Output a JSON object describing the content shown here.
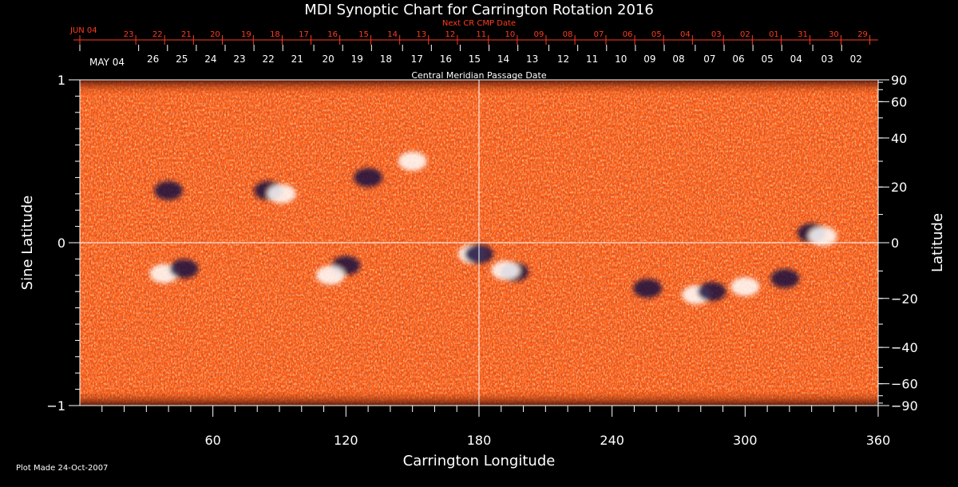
{
  "colors": {
    "background": "#000000",
    "foreground": "#ffffff",
    "next_cr_accent": "#ff3b1f",
    "field_base": "#ff5a10",
    "positive_polarity": "#ffffff",
    "negative_polarity": "#1a1040"
  },
  "chart_data": {
    "type": "heatmap",
    "title": "MDI Synoptic Chart for Carrington Rotation 2016",
    "xlabel": "Carrington Longitude",
    "ylabel": "Sine Latitude",
    "y2label": "Latitude",
    "xlim": [
      0,
      360
    ],
    "ylim": [
      -1,
      1
    ],
    "x_ticks": [
      60,
      120,
      180,
      240,
      300,
      360
    ],
    "y_ticks": [
      {
        "value": 1,
        "label": "1"
      },
      {
        "value": 0,
        "label": "0"
      },
      {
        "value": -1,
        "label": "−1"
      }
    ],
    "lat_ticks": [
      {
        "deg": 90,
        "label": "90"
      },
      {
        "deg": 60,
        "label": "60"
      },
      {
        "deg": 40,
        "label": "40"
      },
      {
        "deg": 20,
        "label": "20"
      },
      {
        "deg": 0,
        "label": "0"
      },
      {
        "deg": -20,
        "label": "−20"
      },
      {
        "deg": -40,
        "label": "−40"
      },
      {
        "deg": -60,
        "label": "−60"
      },
      {
        "deg": -90,
        "label": "−90"
      }
    ],
    "cmp_axis_label": "Central Meridian Passage Date",
    "cmp_first_label": "MAY 04",
    "cmp_dates": [
      {
        "lon": 33,
        "label": "26"
      },
      {
        "lon": 46,
        "label": "25"
      },
      {
        "lon": 59,
        "label": "24"
      },
      {
        "lon": 72,
        "label": "23"
      },
      {
        "lon": 85,
        "label": "22"
      },
      {
        "lon": 98,
        "label": "21"
      },
      {
        "lon": 112,
        "label": "20"
      },
      {
        "lon": 125,
        "label": "19"
      },
      {
        "lon": 138,
        "label": "18"
      },
      {
        "lon": 152,
        "label": "17"
      },
      {
        "lon": 165,
        "label": "16"
      },
      {
        "lon": 178,
        "label": "15"
      },
      {
        "lon": 191,
        "label": "14"
      },
      {
        "lon": 204,
        "label": "13"
      },
      {
        "lon": 218,
        "label": "12"
      },
      {
        "lon": 231,
        "label": "11"
      },
      {
        "lon": 244,
        "label": "10"
      },
      {
        "lon": 257,
        "label": "09"
      },
      {
        "lon": 270,
        "label": "08"
      },
      {
        "lon": 284,
        "label": "07"
      },
      {
        "lon": 297,
        "label": "06"
      },
      {
        "lon": 310,
        "label": "05"
      },
      {
        "lon": 323,
        "label": "04"
      },
      {
        "lon": 337,
        "label": "03"
      },
      {
        "lon": 350,
        "label": "02"
      }
    ],
    "next_cr_label": "Next CR CMP Date",
    "next_cr_first_label": "JUN 04",
    "next_cr_dates": [
      {
        "lon": 22,
        "label": "23"
      },
      {
        "lon": 35,
        "label": "22"
      },
      {
        "lon": 48,
        "label": "21"
      },
      {
        "lon": 61,
        "label": "20"
      },
      {
        "lon": 75,
        "label": "19"
      },
      {
        "lon": 88,
        "label": "18"
      },
      {
        "lon": 101,
        "label": "17"
      },
      {
        "lon": 114,
        "label": "16"
      },
      {
        "lon": 128,
        "label": "15"
      },
      {
        "lon": 141,
        "label": "14"
      },
      {
        "lon": 154,
        "label": "13"
      },
      {
        "lon": 167,
        "label": "12"
      },
      {
        "lon": 181,
        "label": "11"
      },
      {
        "lon": 194,
        "label": "10"
      },
      {
        "lon": 207,
        "label": "09"
      },
      {
        "lon": 220,
        "label": "08"
      },
      {
        "lon": 234,
        "label": "07"
      },
      {
        "lon": 247,
        "label": "06"
      },
      {
        "lon": 260,
        "label": "05"
      },
      {
        "lon": 273,
        "label": "04"
      },
      {
        "lon": 287,
        "label": "03"
      },
      {
        "lon": 300,
        "label": "02"
      },
      {
        "lon": 313,
        "label": "01"
      },
      {
        "lon": 326,
        "label": "31"
      },
      {
        "lon": 340,
        "label": "30"
      },
      {
        "lon": 353,
        "label": "29"
      }
    ],
    "active_regions": [
      {
        "lon": 38,
        "sinlat": -0.19,
        "polarity": "positive"
      },
      {
        "lon": 47,
        "sinlat": -0.16,
        "polarity": "negative"
      },
      {
        "lon": 85,
        "sinlat": 0.32,
        "polarity": "negative"
      },
      {
        "lon": 91,
        "sinlat": 0.3,
        "polarity": "positive"
      },
      {
        "lon": 40,
        "sinlat": 0.32,
        "polarity": "negative"
      },
      {
        "lon": 130,
        "sinlat": 0.4,
        "polarity": "negative"
      },
      {
        "lon": 177,
        "sinlat": -0.07,
        "polarity": "positive"
      },
      {
        "lon": 180,
        "sinlat": -0.07,
        "polarity": "negative"
      },
      {
        "lon": 196,
        "sinlat": -0.18,
        "polarity": "negative"
      },
      {
        "lon": 192,
        "sinlat": -0.17,
        "polarity": "positive"
      },
      {
        "lon": 120,
        "sinlat": -0.14,
        "polarity": "negative"
      },
      {
        "lon": 113,
        "sinlat": -0.2,
        "polarity": "positive"
      },
      {
        "lon": 278,
        "sinlat": -0.32,
        "polarity": "positive"
      },
      {
        "lon": 256,
        "sinlat": -0.28,
        "polarity": "negative"
      },
      {
        "lon": 318,
        "sinlat": -0.22,
        "polarity": "negative"
      },
      {
        "lon": 330,
        "sinlat": 0.06,
        "polarity": "negative"
      },
      {
        "lon": 335,
        "sinlat": 0.04,
        "polarity": "positive"
      },
      {
        "lon": 150,
        "sinlat": 0.5,
        "polarity": "positive"
      },
      {
        "lon": 285,
        "sinlat": -0.3,
        "polarity": "negative"
      },
      {
        "lon": 300,
        "sinlat": -0.27,
        "polarity": "positive"
      }
    ],
    "grid": false,
    "crosshair": {
      "lon": 180,
      "sinlat": 0
    }
  },
  "footer": {
    "plot_made": "Plot Made 24-Oct-2007"
  }
}
